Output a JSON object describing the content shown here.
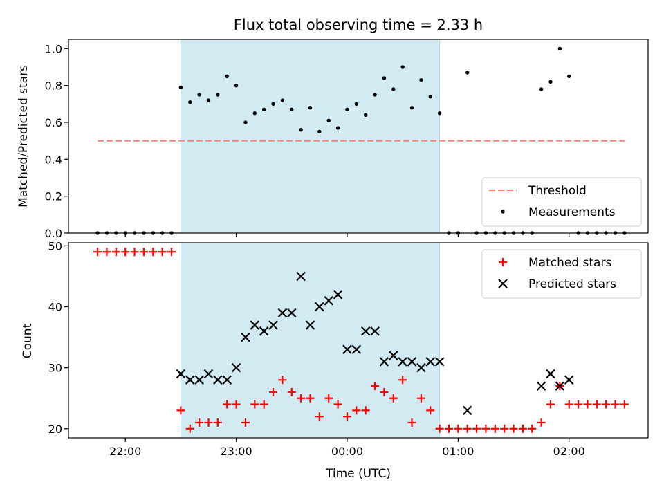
{
  "chart_data": [
    {
      "type": "scatter",
      "title": "Flux total observing time = 2.33 h",
      "ylabel": "Matched/Predicted stars",
      "ylim": [
        0,
        1.05
      ],
      "yticks": [
        0.0,
        0.2,
        0.4,
        0.6,
        0.8,
        1.0
      ],
      "ytick_labels": [
        "0.0",
        "0.2",
        "0.4",
        "0.6",
        "0.8",
        "1.0"
      ],
      "grid": false,
      "legend_position": "bottom-right",
      "shaded_span": [
        "22:30",
        "00:50"
      ],
      "shaded_color": "#add8e6",
      "series": [
        {
          "name": "Threshold",
          "style": "dashed-line",
          "color": "#ff7f7f",
          "x": [
            "21:45",
            "02:30"
          ],
          "y": [
            0.5,
            0.5
          ]
        },
        {
          "name": "Measurements",
          "style": "dot",
          "color": "#000000",
          "x": [
            "21:45",
            "21:50",
            "21:55",
            "22:00",
            "22:05",
            "22:10",
            "22:15",
            "22:20",
            "22:25",
            "22:30",
            "22:35",
            "22:40",
            "22:45",
            "22:50",
            "22:55",
            "23:00",
            "23:05",
            "23:10",
            "23:15",
            "23:20",
            "23:25",
            "23:30",
            "23:35",
            "23:40",
            "23:45",
            "23:50",
            "23:55",
            "00:00",
            "00:05",
            "00:10",
            "00:15",
            "00:20",
            "00:25",
            "00:30",
            "00:35",
            "00:40",
            "00:45",
            "00:50",
            "00:55",
            "01:00",
            "01:05",
            "01:10",
            "01:15",
            "01:20",
            "01:25",
            "01:30",
            "01:35",
            "01:40",
            "01:45",
            "01:50",
            "01:55",
            "02:00",
            "02:05",
            "02:10",
            "02:15",
            "02:20",
            "02:25",
            "02:30"
          ],
          "y": [
            0,
            0,
            0,
            0,
            0,
            0,
            0,
            0,
            0,
            0.79,
            0.71,
            0.75,
            0.72,
            0.75,
            0.85,
            0.8,
            0.6,
            0.65,
            0.67,
            0.7,
            0.72,
            0.67,
            0.56,
            0.68,
            0.55,
            0.61,
            0.57,
            0.67,
            0.7,
            0.64,
            0.75,
            0.84,
            0.78,
            0.9,
            0.68,
            0.83,
            0.74,
            0.65,
            0,
            0,
            0.87,
            0,
            0,
            0,
            0,
            0,
            0,
            0,
            0.78,
            0.82,
            1.0,
            0.85,
            0,
            0,
            0,
            0,
            0,
            0
          ]
        }
      ]
    },
    {
      "type": "scatter",
      "ylabel": "Count",
      "xlabel": "Time (UTC)",
      "ylim": [
        18.5,
        50.5
      ],
      "yticks": [
        20,
        30,
        40,
        50
      ],
      "ytick_labels": [
        "20",
        "30",
        "40",
        "50"
      ],
      "xticks": [
        "22:00",
        "23:00",
        "00:00",
        "01:00",
        "02:00"
      ],
      "grid": false,
      "legend_position": "top-right",
      "shaded_span": [
        "22:30",
        "00:50"
      ],
      "shaded_color": "#add8e6",
      "series": [
        {
          "name": "Matched stars",
          "marker": "plus",
          "color": "#ff0000",
          "x": [
            "21:45",
            "21:50",
            "21:55",
            "22:00",
            "22:05",
            "22:10",
            "22:15",
            "22:20",
            "22:25",
            "22:30",
            "22:35",
            "22:40",
            "22:45",
            "22:50",
            "22:55",
            "23:00",
            "23:05",
            "23:10",
            "23:15",
            "23:20",
            "23:25",
            "23:30",
            "23:35",
            "23:40",
            "23:45",
            "23:50",
            "23:55",
            "00:00",
            "00:05",
            "00:10",
            "00:15",
            "00:20",
            "00:25",
            "00:30",
            "00:35",
            "00:40",
            "00:45",
            "00:50",
            "00:55",
            "01:00",
            "01:05",
            "01:10",
            "01:15",
            "01:20",
            "01:25",
            "01:30",
            "01:35",
            "01:40",
            "01:45",
            "01:50",
            "01:55",
            "02:00",
            "02:05",
            "02:10",
            "02:15",
            "02:20",
            "02:25",
            "02:30"
          ],
          "y": [
            49,
            49,
            49,
            49,
            49,
            49,
            49,
            49,
            49,
            23,
            20,
            21,
            21,
            21,
            24,
            24,
            21,
            24,
            24,
            26,
            28,
            26,
            25,
            25,
            22,
            25,
            24,
            22,
            23,
            23,
            27,
            26,
            25,
            28,
            21,
            25,
            23,
            20,
            20,
            20,
            20,
            20,
            20,
            20,
            20,
            20,
            20,
            20,
            21,
            24,
            27,
            24,
            24,
            24,
            24,
            24,
            24,
            24
          ]
        },
        {
          "name": "Predicted stars",
          "marker": "x",
          "color": "#000000",
          "x": [
            "22:30",
            "22:35",
            "22:40",
            "22:45",
            "22:50",
            "22:55",
            "23:00",
            "23:05",
            "23:10",
            "23:15",
            "23:20",
            "23:25",
            "23:30",
            "23:35",
            "23:40",
            "23:45",
            "23:50",
            "23:55",
            "00:00",
            "00:05",
            "00:10",
            "00:15",
            "00:20",
            "00:25",
            "00:30",
            "00:35",
            "00:40",
            "00:45",
            "00:50",
            "01:05",
            "01:45",
            "01:50",
            "01:55",
            "02:00"
          ],
          "y": [
            29,
            28,
            28,
            29,
            28,
            28,
            30,
            35,
            37,
            36,
            37,
            39,
            39,
            45,
            37,
            40,
            41,
            42,
            33,
            33,
            36,
            36,
            31,
            32,
            31,
            31,
            30,
            31,
            31,
            23,
            27,
            29,
            27,
            28
          ]
        }
      ]
    }
  ]
}
